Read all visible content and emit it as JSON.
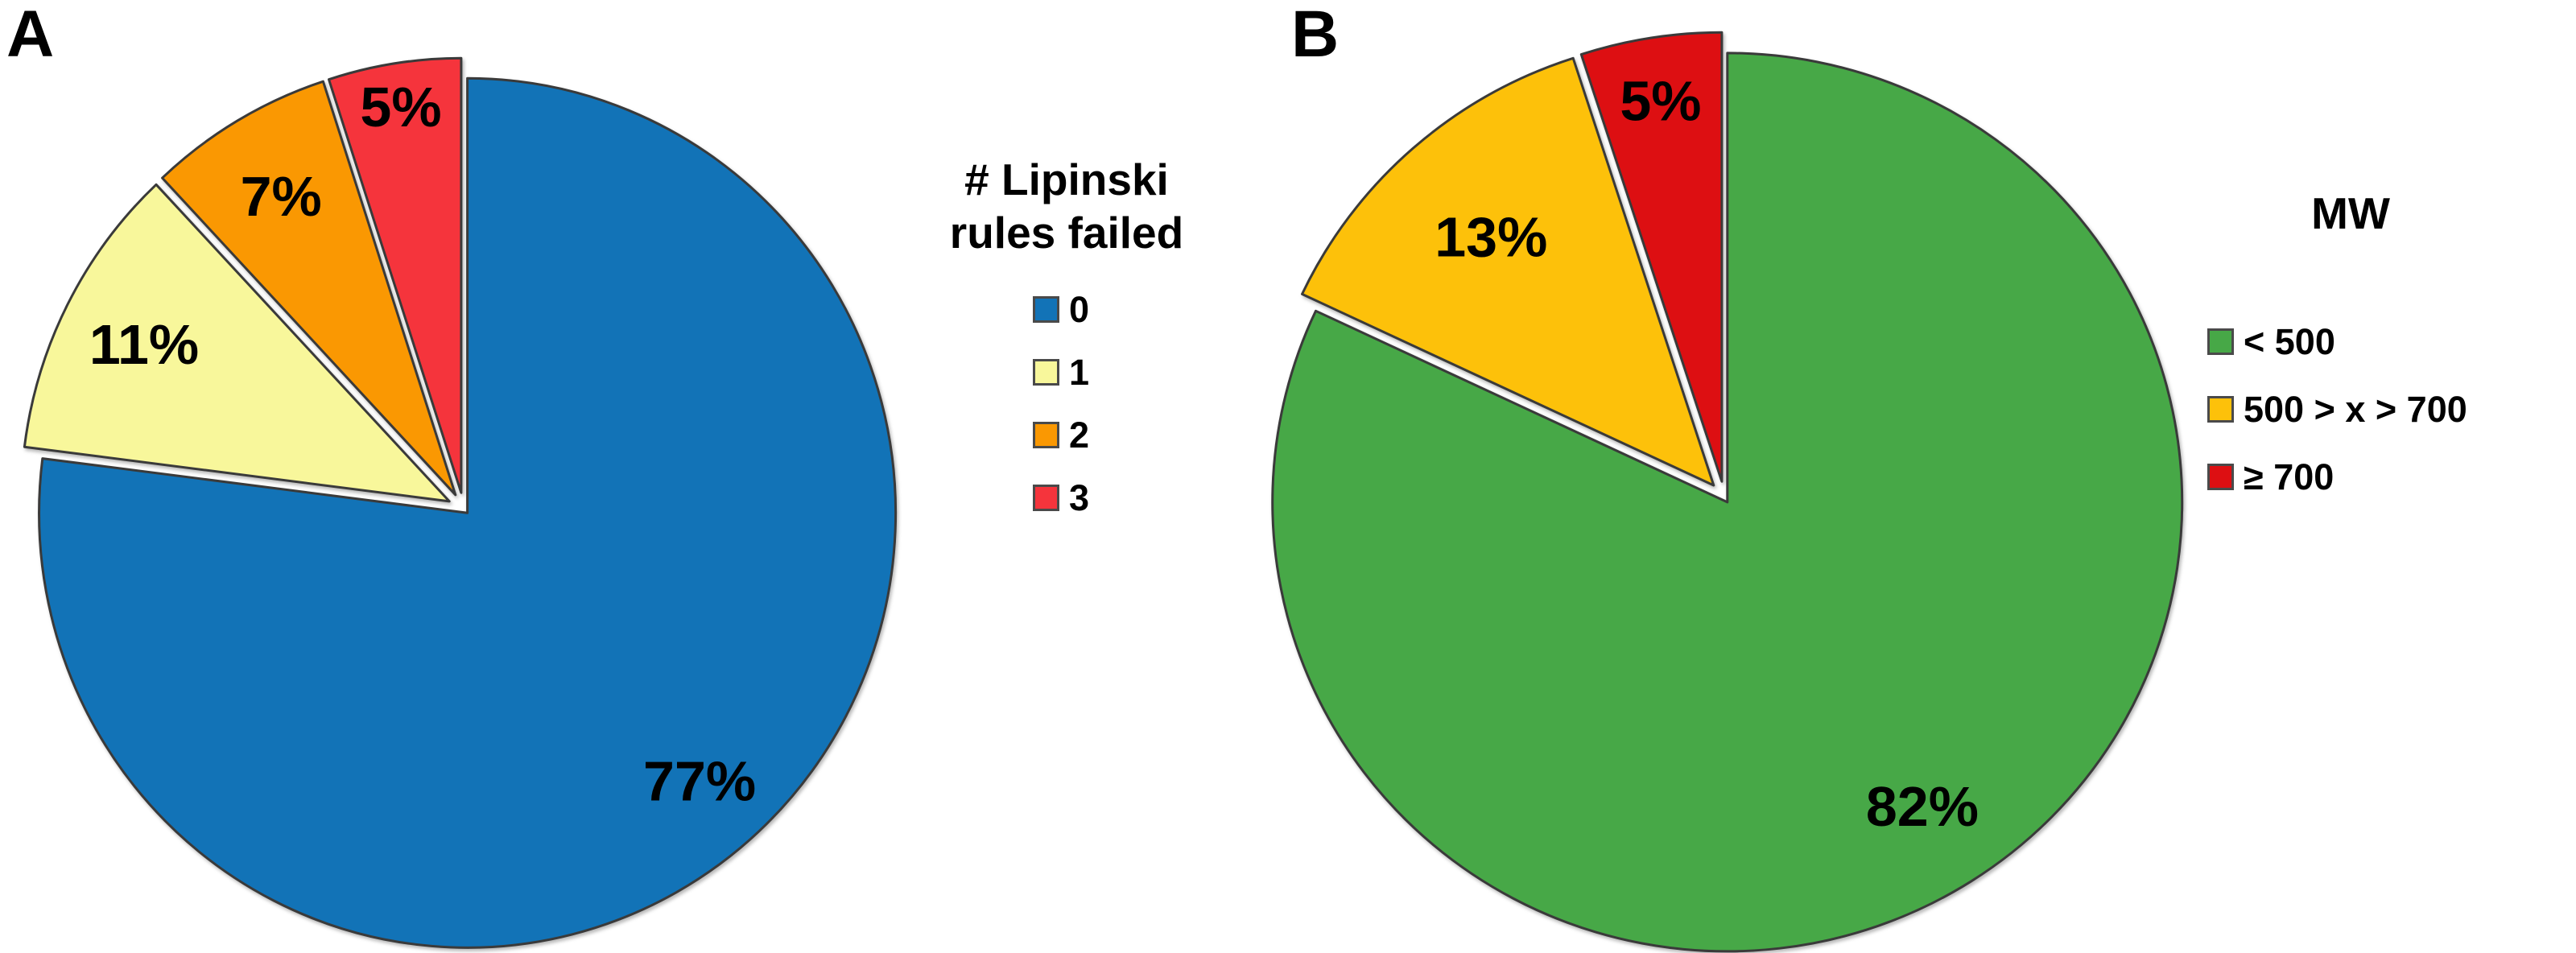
{
  "figure": {
    "background": "#ffffff",
    "panel_labels": [
      "A",
      "B"
    ]
  },
  "chart_data": [
    {
      "type": "pie",
      "panel_label": "A",
      "title": "# Lipinski rules failed",
      "legend_title_lines": [
        "# Lipinski",
        "rules failed"
      ],
      "legend_position": "right",
      "categories": [
        "0",
        "1",
        "2",
        "3"
      ],
      "values": [
        77,
        11,
        7,
        5
      ],
      "slice_labels": [
        "77%",
        "11%",
        "7%",
        "5%"
      ],
      "colors": [
        "#1273B7",
        "#F8F79B",
        "#FA9802",
        "#F5343C"
      ],
      "start_angle_deg": 0,
      "direction": "clockwise",
      "exploded": true,
      "label_color": "#000000"
    },
    {
      "type": "pie",
      "panel_label": "B",
      "title": "MW",
      "legend_title_lines": [
        "MW"
      ],
      "legend_position": "right",
      "categories": [
        "< 500",
        "500 > x > 700",
        "≥ 700"
      ],
      "values": [
        82,
        13,
        5
      ],
      "slice_labels": [
        "82%",
        "13%",
        "5%"
      ],
      "colors": [
        "#47A847",
        "#FDC10A",
        "#DD0F12"
      ],
      "start_angle_deg": 0,
      "direction": "clockwise",
      "exploded": true,
      "label_color": "#000000"
    }
  ]
}
